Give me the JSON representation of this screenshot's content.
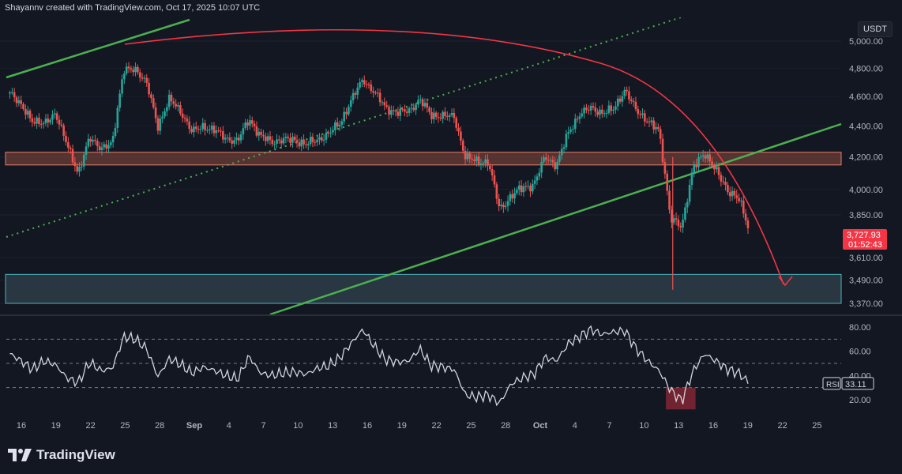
{
  "header": {
    "credit": "Shayannv created with TradingView.com, Oct 17, 2025 10:07 UTC"
  },
  "currency": "USDT",
  "footer": {
    "brand": "TradingView"
  },
  "colors": {
    "background": "#131722",
    "up": "#26a69a",
    "down": "#ef5350",
    "resistance_zone": "#8a4a3e",
    "support_zone": "#2b3b45",
    "channel_line": "#4caf50",
    "arc": "#f23645",
    "rsi_line": "#d1d4dc"
  },
  "chart_data": {
    "type": "candlestick",
    "price_axis": {
      "ticks": [
        "5,000.00",
        "4,800.00",
        "4,600.00",
        "4,400.00",
        "4,200.00",
        "4,000.00",
        "3,850.00",
        "3,610.00",
        "3,490.00",
        "3,370.00"
      ],
      "scale": "log"
    },
    "time_axis": {
      "ticks": [
        "16",
        "19",
        "22",
        "25",
        "28",
        "Sep",
        "4",
        "7",
        "10",
        "13",
        "16",
        "19",
        "22",
        "25",
        "28",
        "Oct",
        "4",
        "7",
        "10",
        "13",
        "16",
        "19",
        "22",
        "25"
      ]
    },
    "price_close_points": [
      [
        "Aug 13",
        4620
      ],
      [
        "Aug 14",
        4550
      ],
      [
        "Aug 15",
        4420
      ],
      [
        "Aug 16",
        4430
      ],
      [
        "Aug 17",
        4470
      ],
      [
        "Aug 18",
        4300
      ],
      [
        "Aug 19",
        4080
      ],
      [
        "Aug 20",
        4340
      ],
      [
        "Aug 21",
        4240
      ],
      [
        "Aug 22",
        4300
      ],
      [
        "Aug 23",
        4780
      ],
      [
        "Aug 24",
        4800
      ],
      [
        "Aug 25",
        4690
      ],
      [
        "Aug 26",
        4400
      ],
      [
        "Aug 27",
        4580
      ],
      [
        "Aug 28",
        4500
      ],
      [
        "Aug 29",
        4360
      ],
      [
        "Aug 30",
        4400
      ],
      [
        "Aug 31",
        4370
      ],
      [
        "Sep 1",
        4320
      ],
      [
        "Sep 2",
        4300
      ],
      [
        "Sep 3",
        4450
      ],
      [
        "Sep 4",
        4330
      ],
      [
        "Sep 5",
        4300
      ],
      [
        "Sep 6",
        4310
      ],
      [
        "Sep 7",
        4310
      ],
      [
        "Sep 8",
        4280
      ],
      [
        "Sep 9",
        4310
      ],
      [
        "Sep 10",
        4350
      ],
      [
        "Sep 11",
        4420
      ],
      [
        "Sep 12",
        4580
      ],
      [
        "Sep 13",
        4720
      ],
      [
        "Sep 14",
        4630
      ],
      [
        "Sep 15",
        4520
      ],
      [
        "Sep 16",
        4490
      ],
      [
        "Sep 17",
        4500
      ],
      [
        "Sep 18",
        4580
      ],
      [
        "Sep 19",
        4470
      ],
      [
        "Sep 20",
        4470
      ],
      [
        "Sep 21",
        4460
      ],
      [
        "Sep 22",
        4200
      ],
      [
        "Sep 23",
        4170
      ],
      [
        "Sep 24",
        4170
      ],
      [
        "Sep 25",
        3880
      ],
      [
        "Sep 26",
        3960
      ],
      [
        "Sep 27",
        4010
      ],
      [
        "Sep 28",
        4030
      ],
      [
        "Sep 29",
        4200
      ],
      [
        "Sep 30",
        4150
      ],
      [
        "Oct 1",
        4350
      ],
      [
        "Oct 2",
        4480
      ],
      [
        "Oct 3",
        4520
      ],
      [
        "Oct 4",
        4490
      ],
      [
        "Oct 5",
        4510
      ],
      [
        "Oct 6",
        4650
      ],
      [
        "Oct 7",
        4500
      ],
      [
        "Oct 8",
        4440
      ],
      [
        "Oct 9",
        4360
      ],
      [
        "Oct 10",
        3840
      ],
      [
        "Oct 11",
        3770
      ],
      [
        "Oct 12",
        4150
      ],
      [
        "Oct 13",
        4210
      ],
      [
        "Oct 14",
        4130
      ],
      [
        "Oct 15",
        3980
      ],
      [
        "Oct 16",
        3960
      ],
      [
        "Oct 17",
        3728
      ]
    ],
    "last_price": {
      "value": "3,727.93",
      "countdown": "01:52:43"
    },
    "zones": [
      {
        "name": "resistance",
        "from": 4150,
        "to": 4230
      },
      {
        "name": "support",
        "from": 3370,
        "to": 3520
      }
    ],
    "rsi": {
      "label": "RSI",
      "value": "33.11",
      "ticks": [
        "80.00",
        "60.00",
        "40.00",
        "20.00"
      ],
      "levels": [
        70,
        50,
        30
      ],
      "points": [
        [
          "Aug 13",
          58
        ],
        [
          "Aug 14",
          52
        ],
        [
          "Aug 15",
          45
        ],
        [
          "Aug 16",
          52
        ],
        [
          "Aug 17",
          49
        ],
        [
          "Aug 18",
          38
        ],
        [
          "Aug 19",
          34
        ],
        [
          "Aug 20",
          51
        ],
        [
          "Aug 21",
          44
        ],
        [
          "Aug 22",
          46
        ],
        [
          "Aug 23",
          72
        ],
        [
          "Aug 24",
          70
        ],
        [
          "Aug 25",
          62
        ],
        [
          "Aug 26",
          39
        ],
        [
          "Aug 27",
          54
        ],
        [
          "Aug 28",
          49
        ],
        [
          "Aug 29",
          42
        ],
        [
          "Aug 30",
          47
        ],
        [
          "Aug 31",
          44
        ],
        [
          "Sep 1",
          40
        ],
        [
          "Sep 2",
          37
        ],
        [
          "Sep 3",
          56
        ],
        [
          "Sep 4",
          42
        ],
        [
          "Sep 5",
          40
        ],
        [
          "Sep 6",
          42
        ],
        [
          "Sep 7",
          43
        ],
        [
          "Sep 8",
          41
        ],
        [
          "Sep 9",
          46
        ],
        [
          "Sep 10",
          48
        ],
        [
          "Sep 11",
          55
        ],
        [
          "Sep 12",
          67
        ],
        [
          "Sep 13",
          78
        ],
        [
          "Sep 14",
          64
        ],
        [
          "Sep 15",
          53
        ],
        [
          "Sep 16",
          51
        ],
        [
          "Sep 17",
          52
        ],
        [
          "Sep 18",
          62
        ],
        [
          "Sep 19",
          48
        ],
        [
          "Sep 20",
          47
        ],
        [
          "Sep 21",
          45
        ],
        [
          "Sep 22",
          24
        ],
        [
          "Sep 23",
          22
        ],
        [
          "Sep 24",
          24
        ],
        [
          "Sep 25",
          17
        ],
        [
          "Sep 26",
          33
        ],
        [
          "Sep 27",
          38
        ],
        [
          "Sep 28",
          41
        ],
        [
          "Sep 29",
          55
        ],
        [
          "Sep 30",
          52
        ],
        [
          "Oct 1",
          66
        ],
        [
          "Oct 2",
          72
        ],
        [
          "Oct 3",
          78
        ],
        [
          "Oct 4",
          74
        ],
        [
          "Oct 5",
          76
        ],
        [
          "Oct 6",
          77
        ],
        [
          "Oct 7",
          62
        ],
        [
          "Oct 8",
          52
        ],
        [
          "Oct 9",
          44
        ],
        [
          "Oct 10",
          28
        ],
        [
          "Oct 11",
          19
        ],
        [
          "Oct 12",
          44
        ],
        [
          "Oct 13",
          58
        ],
        [
          "Oct 14",
          52
        ],
        [
          "Oct 15",
          45
        ],
        [
          "Oct 16",
          42
        ],
        [
          "Oct 17",
          33
        ]
      ]
    },
    "annotations": [
      "ascending channel",
      "projected curved decline arrow",
      "RSI oversold highlight"
    ]
  }
}
